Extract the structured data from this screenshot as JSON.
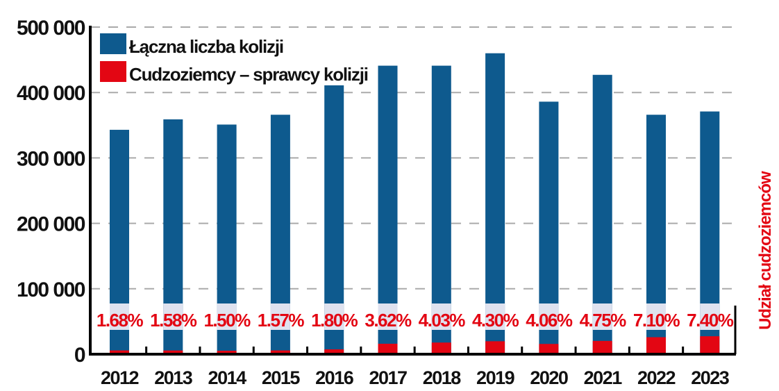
{
  "chart_data": {
    "type": "bar",
    "title": "",
    "xlabel": "",
    "ylabel": "",
    "secondary_label": "Udział cudzoziemców",
    "ylim": [
      0,
      500000
    ],
    "yticks": [
      0,
      100000,
      200000,
      300000,
      400000,
      500000
    ],
    "ytick_labels": [
      "0",
      "100 000",
      "200 000",
      "300 000",
      "400 000",
      "500 000"
    ],
    "grid": "horizontal dashed",
    "legend_placement": "top-left",
    "categories": [
      "2012",
      "2013",
      "2014",
      "2015",
      "2016",
      "2017",
      "2018",
      "2019",
      "2020",
      "2021",
      "2022",
      "2023"
    ],
    "series": [
      {
        "name": "Łączna liczba kolizji",
        "color": "#0e5a8e",
        "values": [
          343000,
          359000,
          351000,
          366000,
          411000,
          441000,
          441000,
          460000,
          386000,
          427000,
          366000,
          371000
        ]
      },
      {
        "name": "Cudzoziemcy – sprawcy kolizji",
        "color": "#e30613",
        "values": [
          5760,
          5670,
          5270,
          5750,
          7400,
          15960,
          17770,
          19780,
          15670,
          20280,
          25990,
          27450
        ]
      }
    ],
    "share_labels": [
      "1.68%",
      "1.58%",
      "1.50%",
      "1.57%",
      "1.80%",
      "3.62%",
      "4.03%",
      "4.30%",
      "4.06%",
      "4.75%",
      "7.10%",
      "7.40%"
    ],
    "colors": {
      "band": "#dfe2ef",
      "grid": "#aaaaaa",
      "axis": "#000000"
    }
  }
}
